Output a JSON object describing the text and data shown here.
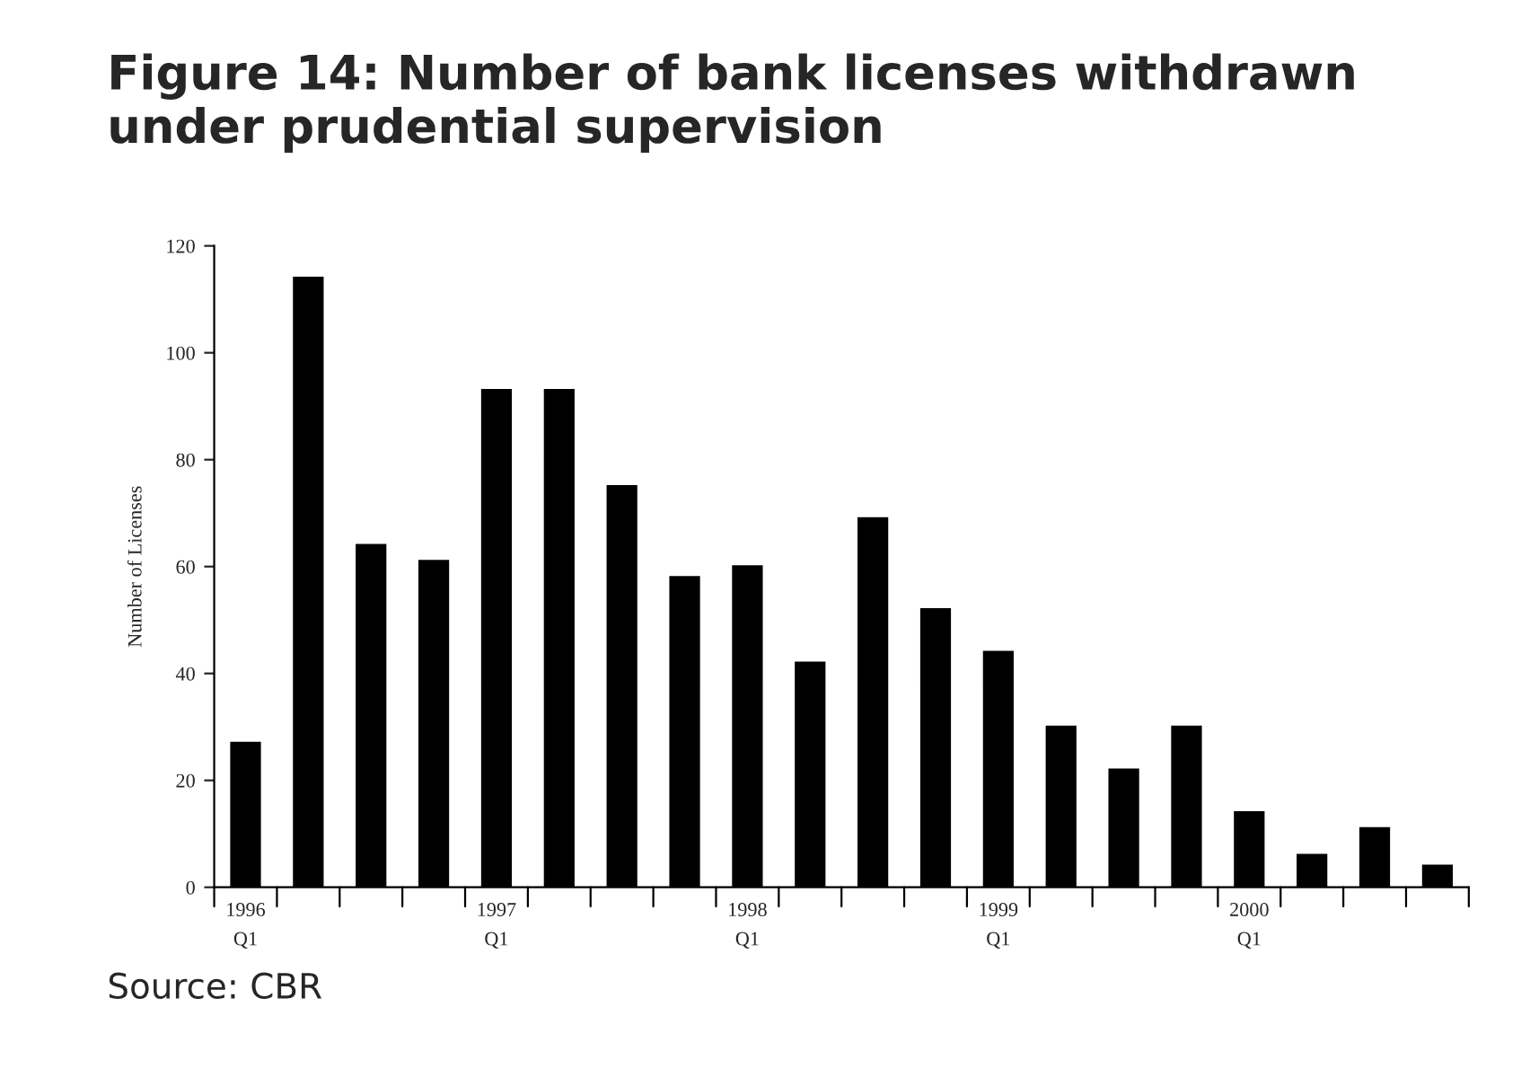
{
  "chart_data": {
    "type": "bar",
    "title": "Figure 14: Number of bank licenses withdrawn under prudential supervision",
    "ylabel": "Number of Licenses",
    "categories": [
      "1996\nQ1",
      null,
      null,
      null,
      "1997\nQ1",
      null,
      null,
      null,
      "1998\nQ1",
      null,
      null,
      null,
      "1999\nQ1",
      null,
      null,
      null,
      "2000\nQ1",
      null,
      null,
      null
    ],
    "values": [
      27,
      114,
      64,
      61,
      93,
      93,
      75,
      58,
      60,
      42,
      69,
      52,
      44,
      30,
      22,
      30,
      14,
      6,
      11,
      4
    ],
    "color": "#000000",
    "ylim": [
      0,
      120
    ],
    "yticks": [
      0,
      20,
      40,
      60,
      80,
      100,
      120
    ],
    "grid": false,
    "annotations": [
      "Source: CBR"
    ]
  }
}
